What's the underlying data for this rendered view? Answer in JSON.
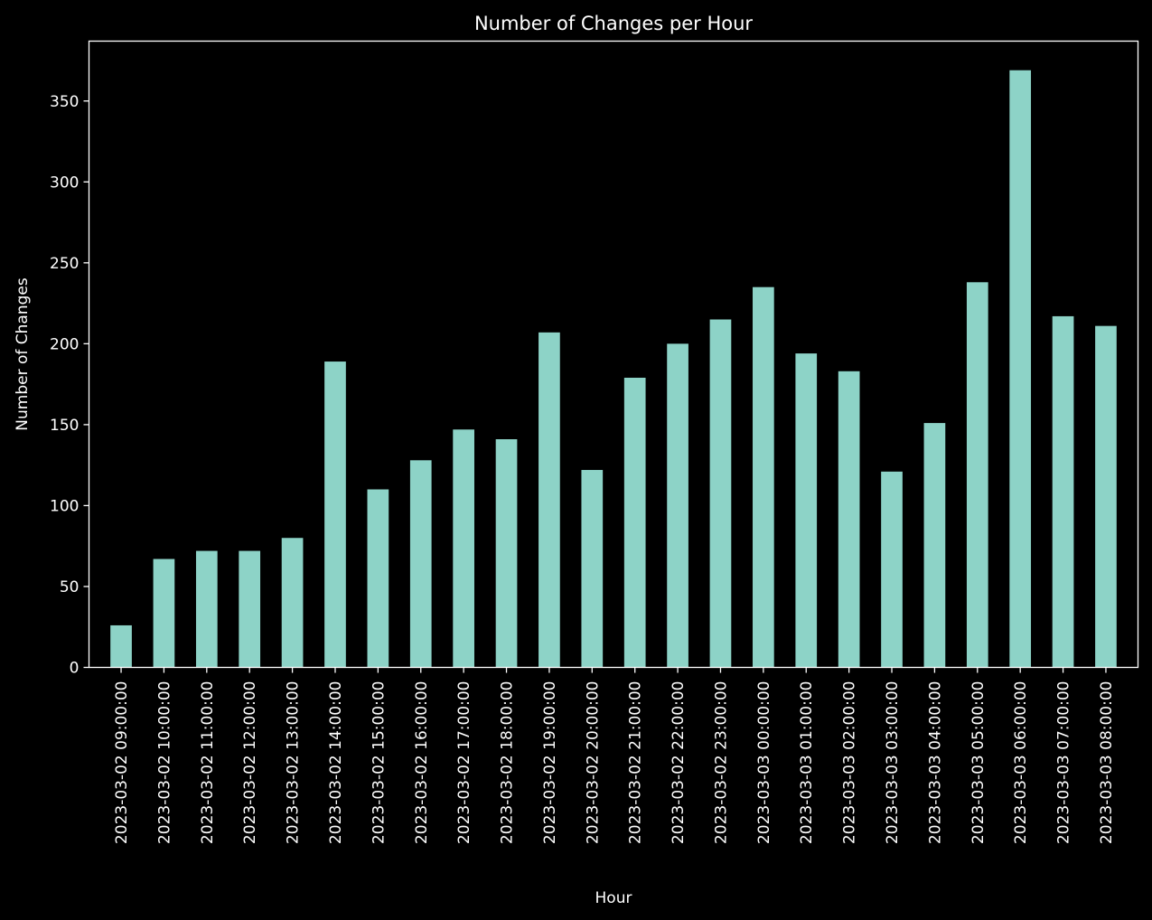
{
  "chart_data": {
    "type": "bar",
    "title": "Number of Changes per Hour",
    "xlabel": "Hour",
    "ylabel": "Number of Changes",
    "categories": [
      "2023-03-02 09:00:00",
      "2023-03-02 10:00:00",
      "2023-03-02 11:00:00",
      "2023-03-02 12:00:00",
      "2023-03-02 13:00:00",
      "2023-03-02 14:00:00",
      "2023-03-02 15:00:00",
      "2023-03-02 16:00:00",
      "2023-03-02 17:00:00",
      "2023-03-02 18:00:00",
      "2023-03-02 19:00:00",
      "2023-03-02 20:00:00",
      "2023-03-02 21:00:00",
      "2023-03-02 22:00:00",
      "2023-03-02 23:00:00",
      "2023-03-03 00:00:00",
      "2023-03-03 01:00:00",
      "2023-03-03 02:00:00",
      "2023-03-03 03:00:00",
      "2023-03-03 04:00:00",
      "2023-03-03 05:00:00",
      "2023-03-03 06:00:00",
      "2023-03-03 07:00:00",
      "2023-03-03 08:00:00"
    ],
    "values": [
      26,
      67,
      72,
      72,
      80,
      189,
      110,
      128,
      147,
      141,
      207,
      122,
      179,
      200,
      215,
      235,
      194,
      183,
      121,
      151,
      238,
      369,
      217,
      211
    ],
    "ylim": [
      0,
      387
    ],
    "yticks": [
      0,
      50,
      100,
      150,
      200,
      250,
      300,
      350
    ],
    "grid": false,
    "legend": "none",
    "colors": {
      "bar": "#8dd3c7",
      "background": "#000000",
      "foreground": "#ffffff"
    }
  }
}
